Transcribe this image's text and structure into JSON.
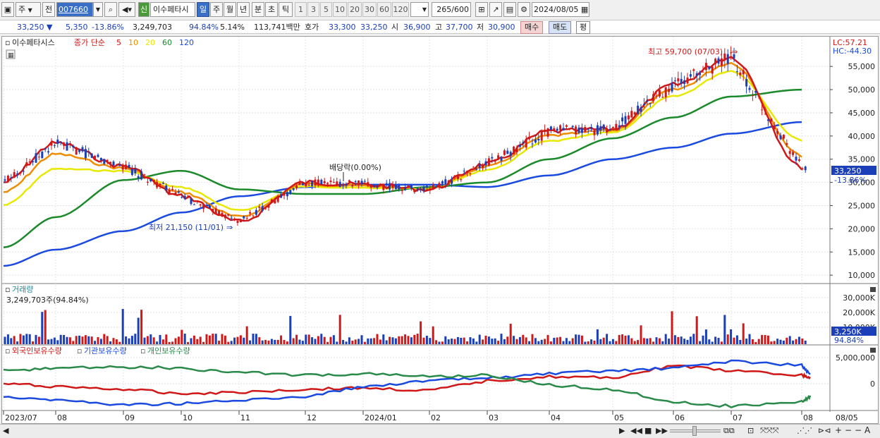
{
  "toolbar": {
    "market_label": "주",
    "prev_label": "전",
    "code_value": "007660",
    "new_badge": "신",
    "stock_name": "이수페타시",
    "period_tabs": [
      "일",
      "주",
      "월",
      "년",
      "분",
      "초",
      "틱"
    ],
    "interval_buttons": [
      "1",
      "3",
      "5",
      "10",
      "20",
      "30",
      "60",
      "120"
    ],
    "count_value": "265",
    "count_total": "/600",
    "date_value": "2024/08/05"
  },
  "info": {
    "price": "33,250",
    "change": "5,350",
    "change_pct": "-13.86%",
    "volume": "3,249,703",
    "vol_ratio": "94.84%",
    "turnover": "5.14%",
    "amount": "113,741백만",
    "quote_label": "호가",
    "quote_ask": "33,300",
    "quote_bid": "33,250",
    "open_label": "시",
    "open": "36,900",
    "high_label": "고",
    "high": "37,700",
    "low_label": "저",
    "low": "30,900",
    "buy_label": "매수",
    "sell_label": "매도",
    "eval_label": "평"
  },
  "price_panel": {
    "name": "이수페타시스",
    "ma_label": "종가 단순",
    "ma_periods": [
      {
        "p": "5",
        "color": "#d01818"
      },
      {
        "p": "10",
        "color": "#f08c00"
      },
      {
        "p": "20",
        "color": "#e8e800"
      },
      {
        "p": "60",
        "color": "#1a8a2a"
      },
      {
        "p": "120",
        "color": "#1a4ae0"
      }
    ],
    "lc_label": "LC:57.21",
    "hc_label": "HC:-44.30",
    "high_note": "최고 59,700 (07/03)",
    "low_note": "최저 21,150 (11/01)",
    "dividend_note": "배당락(0.00%)",
    "current_price_tag": "33,250",
    "current_pct_tag": "-13.86%",
    "y_ticks": [
      "55,000",
      "50,000",
      "45,000",
      "40,000",
      "35,000",
      "30,000",
      "25,000",
      "20,000",
      "15,000",
      "10,000"
    ]
  },
  "volume_panel": {
    "title": "거래량",
    "value_note": "3,249,703주(94.84%)",
    "y_ticks": [
      "30,000K",
      "20,000K",
      "10,000K"
    ],
    "current_tag": "3,250K",
    "pct_tag": "94.84%"
  },
  "holdings_panel": {
    "series": [
      {
        "name": "외국인보유수량",
        "color": "#d01818"
      },
      {
        "name": "기관보유수량",
        "color": "#1a4ae0"
      },
      {
        "name": "개인보유수량",
        "color": "#2a8a4a"
      }
    ],
    "y_ticks": [
      "5,000,000",
      "0"
    ]
  },
  "x_axis": {
    "labels": [
      "2023/07",
      "08",
      "09",
      "10",
      "11",
      "12",
      "2024/01",
      "02",
      "03",
      "04",
      "05",
      "06",
      "07",
      "08",
      "08/05"
    ]
  },
  "chart_data": {
    "type": "line",
    "title": "",
    "x": [
      "2023/07",
      "08",
      "09",
      "10",
      "11",
      "12",
      "2024/01",
      "02",
      "03",
      "04",
      "05",
      "06",
      "07",
      "08"
    ],
    "series": [
      {
        "name": "5",
        "values": [
          30000,
          38500,
          33500,
          27000,
          21500,
          30000,
          29500,
          28500,
          34000,
          41000,
          41500,
          51000,
          57000,
          33250
        ]
      },
      {
        "name": "60",
        "values": [
          16000,
          22500,
          30500,
          32500,
          28500,
          27500,
          27500,
          29000,
          30000,
          35000,
          39500,
          44000,
          48500,
          50000
        ]
      },
      {
        "name": "120",
        "values": [
          12000,
          15500,
          19500,
          23500,
          27000,
          29000,
          29500,
          29500,
          29000,
          31500,
          35000,
          37500,
          40500,
          43000
        ]
      }
    ],
    "ylim": [
      10000,
      60000
    ],
    "xlabel": "",
    "ylabel": ""
  }
}
